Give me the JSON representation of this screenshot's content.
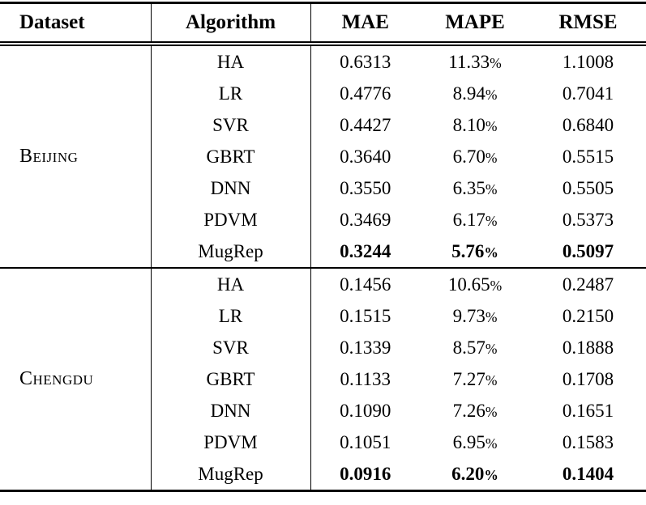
{
  "table": {
    "headers": {
      "dataset": "Dataset",
      "algorithm": "Algorithm",
      "mae": "MAE",
      "mape": "MAPE",
      "rmse": "RMSE"
    },
    "percent_sign": "%",
    "sections": [
      {
        "dataset": "Beijing",
        "rows": [
          {
            "algorithm": "HA",
            "mae": "0.6313",
            "mape": "11.33",
            "rmse": "1.1008",
            "bold": false
          },
          {
            "algorithm": "LR",
            "mae": "0.4776",
            "mape": "8.94",
            "rmse": "0.7041",
            "bold": false
          },
          {
            "algorithm": "SVR",
            "mae": "0.4427",
            "mape": "8.10",
            "rmse": "0.6840",
            "bold": false
          },
          {
            "algorithm": "GBRT",
            "mae": "0.3640",
            "mape": "6.70",
            "rmse": "0.5515",
            "bold": false
          },
          {
            "algorithm": "DNN",
            "mae": "0.3550",
            "mape": "6.35",
            "rmse": "0.5505",
            "bold": false
          },
          {
            "algorithm": "PDVM",
            "mae": "0.3469",
            "mape": "6.17",
            "rmse": "0.5373",
            "bold": false
          },
          {
            "algorithm": "MugRep",
            "mae": "0.3244",
            "mape": "5.76",
            "rmse": "0.5097",
            "bold": true
          }
        ]
      },
      {
        "dataset": "Chengdu",
        "rows": [
          {
            "algorithm": "HA",
            "mae": "0.1456",
            "mape": "10.65",
            "rmse": "0.2487",
            "bold": false
          },
          {
            "algorithm": "LR",
            "mae": "0.1515",
            "mape": "9.73",
            "rmse": "0.2150",
            "bold": false
          },
          {
            "algorithm": "SVR",
            "mae": "0.1339",
            "mape": "8.57",
            "rmse": "0.1888",
            "bold": false
          },
          {
            "algorithm": "GBRT",
            "mae": "0.1133",
            "mape": "7.27",
            "rmse": "0.1708",
            "bold": false
          },
          {
            "algorithm": "DNN",
            "mae": "0.1090",
            "mape": "7.26",
            "rmse": "0.1651",
            "bold": false
          },
          {
            "algorithm": "PDVM",
            "mae": "0.1051",
            "mape": "6.95",
            "rmse": "0.1583",
            "bold": false
          },
          {
            "algorithm": "MugRep",
            "mae": "0.0916",
            "mape": "6.20",
            "rmse": "0.1404",
            "bold": true
          }
        ]
      }
    ]
  },
  "colors": {
    "text": "#000000",
    "background": "#ffffff",
    "rule": "#000000"
  }
}
